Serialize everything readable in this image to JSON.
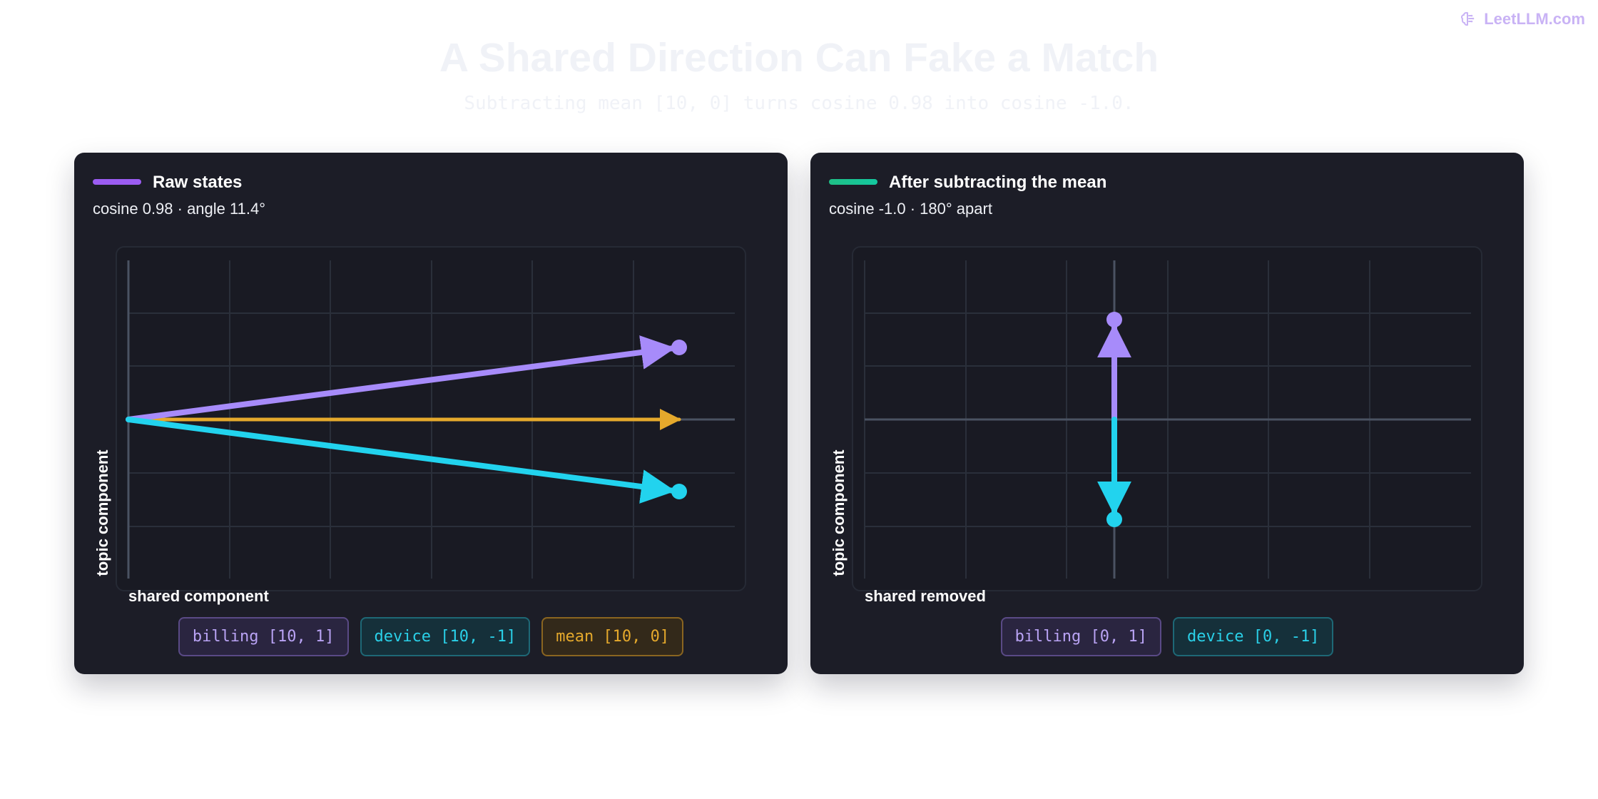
{
  "brand": {
    "name": "LeetLLM.com",
    "icon": "brain-icon"
  },
  "title": "A Shared Direction Can Fake a Match",
  "subtitle": "Subtracting mean [10, 0] turns cosine 0.98 into cosine -1.0.",
  "colors": {
    "billing": "#a78bfa",
    "device": "#22d3ee",
    "mean": "#e5a92c",
    "raw_legend": "#9b5cf2",
    "centered_legend": "#1fbf86"
  },
  "panels": [
    {
      "id": "raw",
      "title": "Raw states",
      "subtitle": "cosine 0.98 · angle 11.4°",
      "xlabel": "shared component",
      "ylabel": "topic component",
      "chips": [
        {
          "kind": "billing",
          "label": "billing [10, 1]"
        },
        {
          "kind": "device",
          "label": "device [10, -1]"
        },
        {
          "kind": "mean",
          "label": "mean [10, 0]"
        }
      ]
    },
    {
      "id": "centered",
      "title": "After subtracting the mean",
      "subtitle": "cosine -1.0 · 180° apart",
      "xlabel": "shared removed",
      "ylabel": "topic component",
      "chips": [
        {
          "kind": "billing",
          "label": "billing [0, 1]"
        },
        {
          "kind": "device",
          "label": "device [0, -1]"
        }
      ]
    }
  ],
  "chart_data": [
    {
      "type": "scatter",
      "title": "Raw states",
      "xlabel": "shared component",
      "ylabel": "topic component",
      "vectors": [
        {
          "name": "billing",
          "from": [
            0,
            0
          ],
          "to": [
            10,
            1
          ]
        },
        {
          "name": "device",
          "from": [
            0,
            0
          ],
          "to": [
            10,
            -1
          ]
        },
        {
          "name": "mean",
          "from": [
            0,
            0
          ],
          "to": [
            10,
            0
          ]
        }
      ]
    },
    {
      "type": "scatter",
      "title": "After subtracting the mean",
      "xlabel": "shared removed",
      "ylabel": "topic component",
      "vectors": [
        {
          "name": "billing",
          "from": [
            0,
            0
          ],
          "to": [
            0,
            1
          ]
        },
        {
          "name": "device",
          "from": [
            0,
            0
          ],
          "to": [
            0,
            -1
          ]
        }
      ]
    }
  ]
}
